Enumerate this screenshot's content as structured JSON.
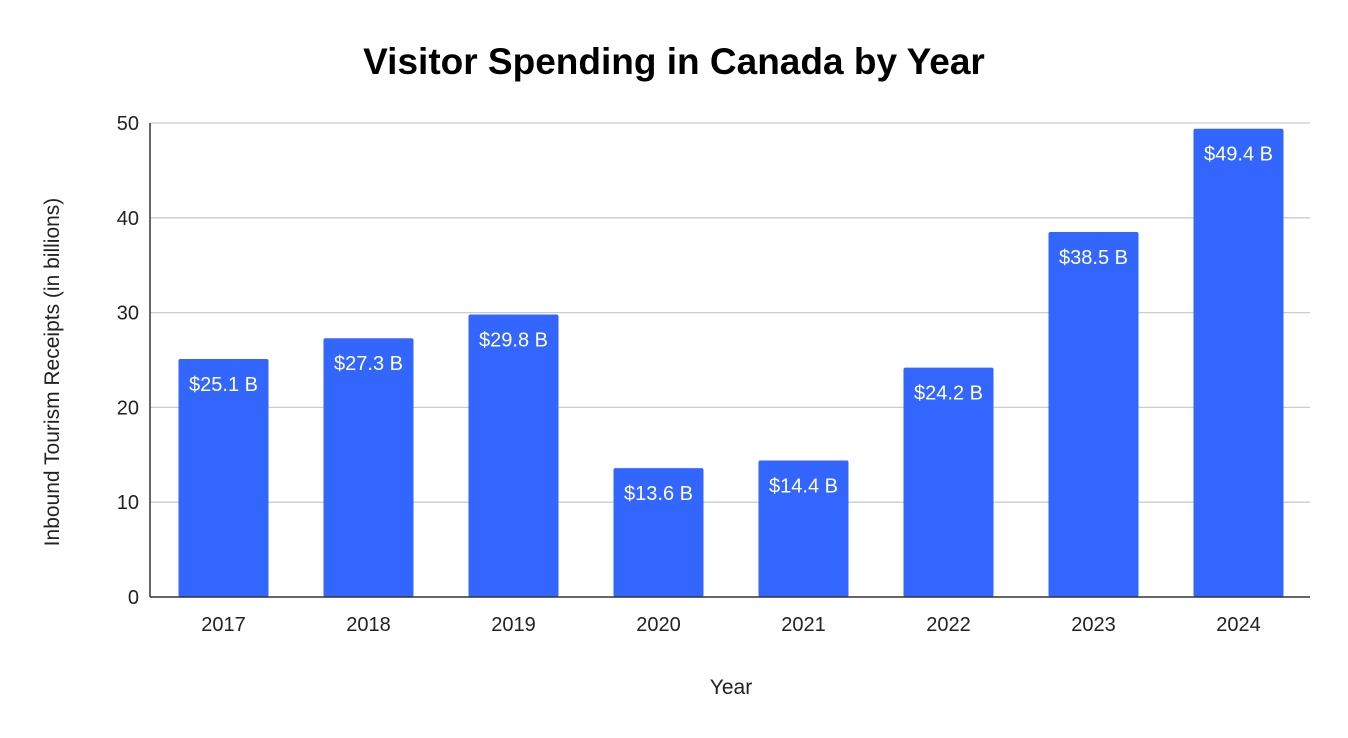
{
  "chart_data": {
    "type": "bar",
    "title": "Visitor Spending in Canada by Year",
    "xlabel": "Year",
    "ylabel": "Inbound Tourism Receipts (in billions)",
    "categories": [
      "2017",
      "2018",
      "2019",
      "2020",
      "2021",
      "2022",
      "2023",
      "2024"
    ],
    "values": [
      25.1,
      27.3,
      29.8,
      13.6,
      14.4,
      24.2,
      38.5,
      49.4
    ],
    "data_labels": [
      "$25.1 B",
      "$27.3 B",
      "$29.8 B",
      "$13.6 B",
      "$14.4 B",
      "$24.2 B",
      "$38.5 B",
      "$49.4 B"
    ],
    "ylim": [
      0,
      50
    ],
    "yticks": [
      0,
      10,
      20,
      30,
      40,
      50
    ],
    "grid": true,
    "legend": "none",
    "bar_color": "#3366ff"
  }
}
